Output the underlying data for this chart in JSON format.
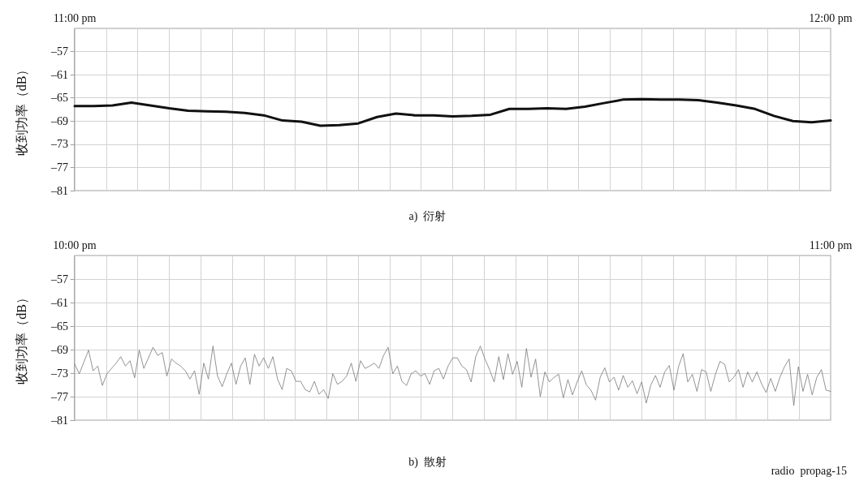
{
  "chart_data": [
    {
      "type": "line",
      "xlabel": "a)  衍射",
      "ylabel": "收到功率（dB）",
      "ylim": [
        -81,
        -53
      ],
      "yticks": [
        {
          "value": -81,
          "label": "–81"
        },
        {
          "value": -77,
          "label": "–77"
        },
        {
          "value": -73,
          "label": "–73"
        },
        {
          "value": -69,
          "label": "–69"
        },
        {
          "value": -65,
          "label": "–65"
        },
        {
          "value": -61,
          "label": "–61"
        },
        {
          "value": -57,
          "label": "–57"
        }
      ],
      "categories": [
        "11:00 pm",
        null,
        null,
        null,
        null,
        null,
        null,
        null,
        null,
        null,
        null,
        null,
        null,
        null,
        null,
        null,
        null,
        null,
        null,
        null,
        null,
        null,
        null,
        null,
        null,
        null,
        null,
        null,
        null,
        null,
        null,
        null,
        null,
        null,
        null,
        null,
        null,
        null,
        null,
        null,
        "12:00 pm"
      ],
      "grid": true,
      "marker": "none",
      "line_style": "solid",
      "series": [
        {
          "color": "#111111",
          "values": [
            -66.4,
            -66.4,
            -66.3,
            -65.8,
            -66.3,
            -66.8,
            -67.2,
            -67.3,
            -67.4,
            -67.6,
            -68.0,
            -68.9,
            -69.1,
            -69.8,
            -69.7,
            -69.4,
            -68.3,
            -67.7,
            -68.0,
            -68.0,
            -68.2,
            -68.1,
            -67.9,
            -66.9,
            -66.9,
            -66.8,
            -66.9,
            -66.5,
            -65.9,
            -65.3,
            -65.2,
            -65.3,
            -65.3,
            -65.4,
            -65.8,
            -66.3,
            -66.9,
            -68.1,
            -69.0,
            -69.2,
            -68.9
          ]
        }
      ]
    },
    {
      "type": "line",
      "xlabel": "b)  散射",
      "ylabel": "收到功率（dB）",
      "annotations": [
        "radio  propag-15"
      ],
      "ylim": [
        -81,
        -53
      ],
      "yticks": [
        {
          "value": -81,
          "label": "–81"
        },
        {
          "value": -77,
          "label": "–77"
        },
        {
          "value": -73,
          "label": "–73"
        },
        {
          "value": -69,
          "label": "–69"
        },
        {
          "value": -65,
          "label": "–65"
        },
        {
          "value": -61,
          "label": "–61"
        },
        {
          "value": -57,
          "label": "–57"
        }
      ],
      "categories": [
        "10:00 pm",
        null,
        null,
        null,
        null,
        null,
        null,
        null,
        null,
        null,
        null,
        null,
        null,
        null,
        null,
        null,
        null,
        null,
        null,
        null,
        null,
        null,
        null,
        null,
        null,
        null,
        null,
        null,
        null,
        null,
        null,
        null,
        null,
        null,
        null,
        null,
        null,
        null,
        null,
        null,
        null,
        null,
        null,
        null,
        null,
        null,
        null,
        null,
        null,
        null,
        null,
        null,
        null,
        null,
        null,
        null,
        null,
        null,
        null,
        null,
        null,
        null,
        null,
        null,
        null,
        null,
        null,
        null,
        null,
        null,
        null,
        null,
        null,
        null,
        null,
        null,
        null,
        null,
        null,
        null,
        null,
        null,
        null,
        null,
        null,
        null,
        null,
        null,
        null,
        null,
        null,
        null,
        null,
        null,
        null,
        null,
        null,
        null,
        null,
        null,
        null,
        null,
        null,
        null,
        null,
        null,
        null,
        null,
        null,
        null,
        null,
        null,
        null,
        null,
        null,
        null,
        null,
        null,
        null,
        null,
        null,
        null,
        null,
        null,
        null,
        null,
        null,
        null,
        null,
        null,
        null,
        null,
        null,
        null,
        null,
        null,
        null,
        null,
        null,
        null,
        null,
        null,
        null,
        null,
        null,
        null,
        null,
        null,
        null,
        null,
        null,
        null,
        null,
        null,
        null,
        null,
        null,
        null,
        null,
        null,
        null,
        null,
        null,
        null,
        "11:00 pm"
      ],
      "grid": true,
      "marker": "none",
      "line_style": "solid",
      "series": [
        {
          "color": "#777777",
          "values": [
            -71.5,
            -73.1,
            -71.1,
            -69.1,
            -72.6,
            -71.8,
            -75.1,
            -73.1,
            -72.2,
            -71.3,
            -70.2,
            -71.8,
            -70.9,
            -73.8,
            -69.1,
            -72.2,
            -70.4,
            -68.6,
            -70.0,
            -69.5,
            -73.5,
            -70.6,
            -71.3,
            -71.8,
            -72.6,
            -74.0,
            -72.6,
            -76.6,
            -71.3,
            -74.0,
            -68.4,
            -73.5,
            -75.3,
            -73.1,
            -71.3,
            -74.9,
            -71.8,
            -70.4,
            -74.9,
            -69.8,
            -71.8,
            -70.4,
            -72.2,
            -70.2,
            -74.0,
            -75.8,
            -72.2,
            -72.6,
            -74.4,
            -74.4,
            -75.8,
            -76.2,
            -74.4,
            -76.6,
            -75.8,
            -77.3,
            -73.1,
            -74.9,
            -74.4,
            -73.5,
            -71.3,
            -74.4,
            -70.9,
            -72.2,
            -71.8,
            -71.3,
            -72.2,
            -70.0,
            -68.6,
            -73.1,
            -71.8,
            -74.4,
            -75.1,
            -73.1,
            -72.6,
            -73.5,
            -73.1,
            -74.9,
            -72.6,
            -72.2,
            -74.0,
            -71.8,
            -70.4,
            -70.4,
            -71.8,
            -72.4,
            -74.5,
            -70.2,
            -68.4,
            -70.6,
            -72.4,
            -74.5,
            -70.2,
            -74.1,
            -69.7,
            -73.2,
            -71.0,
            -75.4,
            -68.8,
            -73.7,
            -70.6,
            -77.0,
            -72.8,
            -74.5,
            -73.7,
            -73.2,
            -77.2,
            -74.1,
            -76.7,
            -74.5,
            -72.6,
            -75.0,
            -75.9,
            -77.6,
            -73.7,
            -72.1,
            -74.5,
            -73.7,
            -75.9,
            -73.4,
            -75.4,
            -74.3,
            -76.5,
            -74.5,
            -78.1,
            -75.0,
            -73.4,
            -75.4,
            -72.8,
            -71.7,
            -75.9,
            -71.9,
            -69.7,
            -74.5,
            -73.2,
            -76.1,
            -72.4,
            -72.8,
            -76.1,
            -73.2,
            -71.0,
            -71.5,
            -74.5,
            -73.7,
            -72.4,
            -75.4,
            -72.8,
            -74.5,
            -72.8,
            -74.8,
            -76.3,
            -73.9,
            -76.1,
            -73.7,
            -71.9,
            -70.6,
            -78.5,
            -71.9,
            -76.1,
            -73.2,
            -76.7,
            -73.7,
            -72.4,
            -75.9,
            -76.1
          ]
        }
      ]
    }
  ]
}
